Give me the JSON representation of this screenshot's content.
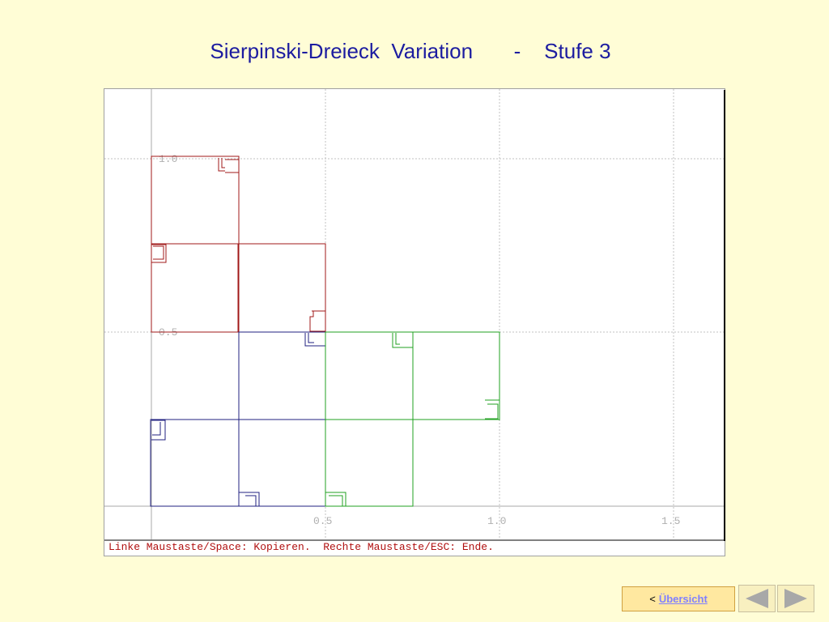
{
  "slide": {
    "title": "Sierpinski-Dreieck  Variation       -    Stufe 3"
  },
  "window": {
    "y_labels": [
      "1.0",
      "0.5"
    ],
    "x_labels": [
      "0.5",
      "1.0",
      "1.5"
    ],
    "status": "Linke Maustaste/Space: Kopieren.  Rechte Maustaste/ESC: Ende."
  },
  "nav": {
    "prefix": "<",
    "link": "Übersicht"
  }
}
